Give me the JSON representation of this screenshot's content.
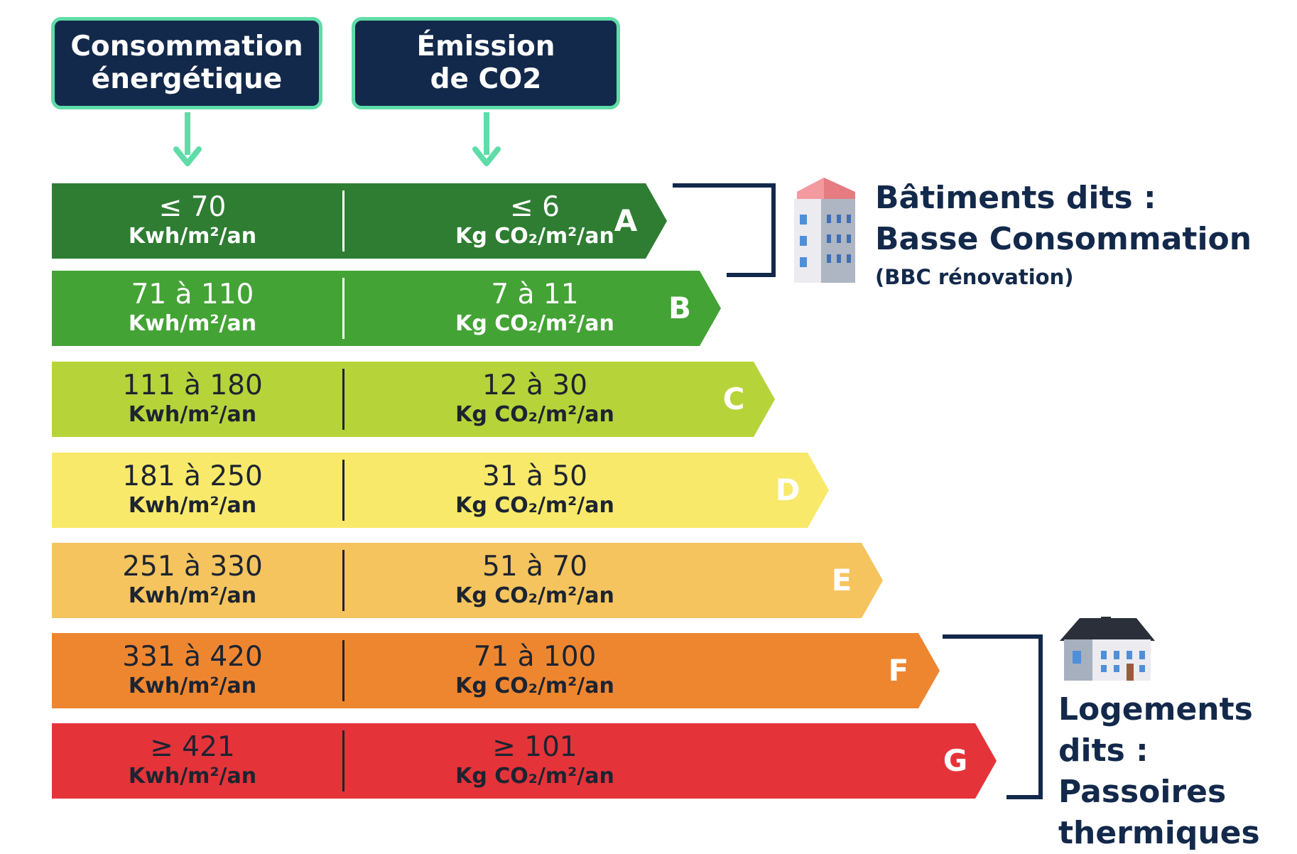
{
  "headers": {
    "energy": [
      "Consommation",
      "énergétique"
    ],
    "co2": [
      "Émission",
      "de CO2"
    ]
  },
  "bands": [
    {
      "letter": "A",
      "energy": "≤ 70",
      "energy_unit": "Kwh/m²/an",
      "co2": "≤ 6",
      "co2_unit": "Kg CO₂/m²/an",
      "color": "#2e7d32"
    },
    {
      "letter": "B",
      "energy": "71 à 110",
      "energy_unit": "Kwh/m²/an",
      "co2": "7 à 11",
      "co2_unit": "Kg CO₂/m²/an",
      "color": "#43a335"
    },
    {
      "letter": "C",
      "energy": "111 à 180",
      "energy_unit": "Kwh/m²/an",
      "co2": "12 à 30",
      "co2_unit": "Kg CO₂/m²/an",
      "color": "#b7d33a"
    },
    {
      "letter": "D",
      "energy": "181 à 250",
      "energy_unit": "Kwh/m²/an",
      "co2": "31 à 50",
      "co2_unit": "Kg CO₂/m²/an",
      "color": "#f8e96a"
    },
    {
      "letter": "E",
      "energy": "251 à 330",
      "energy_unit": "Kwh/m²/an",
      "co2": "51 à 70",
      "co2_unit": "Kg CO₂/m²/an",
      "color": "#f5c45e"
    },
    {
      "letter": "F",
      "energy": "331 à 420",
      "energy_unit": "Kwh/m²/an",
      "co2": "71 à 100",
      "co2_unit": "Kg CO₂/m²/an",
      "color": "#ee8630"
    },
    {
      "letter": "G",
      "energy": "≥ 421",
      "energy_unit": "Kwh/m²/an",
      "co2": "≥ 101",
      "co2_unit": "Kg CO₂/m²/an",
      "color": "#e5333a"
    }
  ],
  "groups": {
    "bbc": {
      "title": [
        "Bâtiments dits :",
        "Basse Consommation"
      ],
      "note": "(BBC rénovation)",
      "icon": "apartment-building-icon"
    },
    "passoires": {
      "title": [
        "Logements",
        "dits : Passoires",
        "thermiques"
      ],
      "icon": "house-icon"
    }
  },
  "colors": {
    "header_bg": "#13294b",
    "header_border": "#5fdca8",
    "bracket": "#13294b",
    "text_dark": "#13294b"
  }
}
